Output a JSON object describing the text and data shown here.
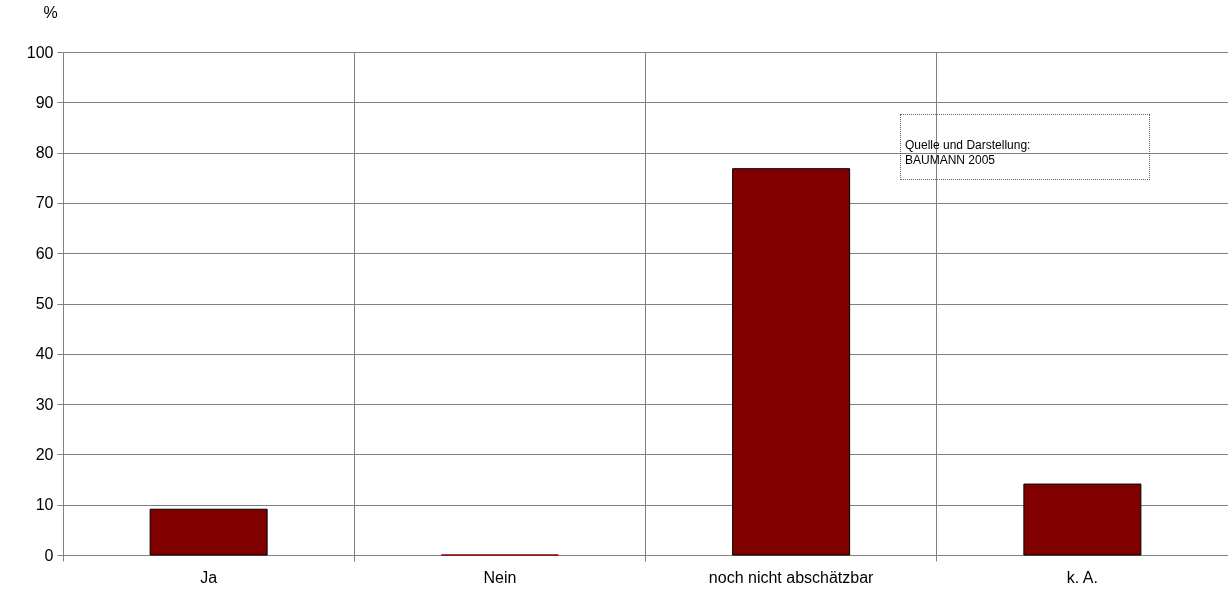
{
  "chart_data": {
    "type": "bar",
    "ylabel": "%",
    "categories": [
      "Ja",
      "Nein",
      "noch nicht abschätzbar",
      "k. A."
    ],
    "values": [
      9.1,
      0,
      76.8,
      14.1
    ],
    "color": "#800000",
    "ylim": [
      0,
      100
    ],
    "yticks": [
      0,
      10,
      20,
      30,
      40,
      50,
      60,
      70,
      80,
      90,
      100
    ],
    "grid": true,
    "annotations": [
      "Quelle und Darstellung:\nBAUMANN 2005"
    ]
  }
}
